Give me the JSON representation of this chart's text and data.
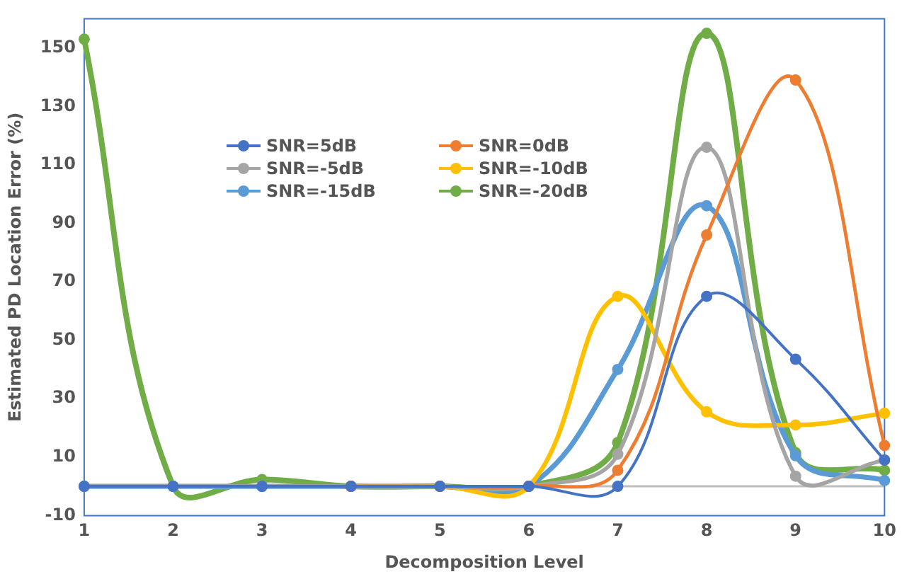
{
  "chart_data": {
    "type": "line",
    "xlabel": "Decomposition Level",
    "ylabel": "Estimated PD Location Error (%)",
    "categories": [
      "1",
      "2",
      "3",
      "4",
      "5",
      "6",
      "7",
      "8",
      "9",
      "10"
    ],
    "ylim": [
      -10,
      160
    ],
    "yticks": [
      -10,
      10,
      30,
      50,
      70,
      90,
      110,
      130,
      150
    ],
    "series": [
      {
        "name": "SNR=5dB",
        "color": "#4472c4",
        "values": [
          0,
          0,
          0,
          0,
          0,
          0,
          0,
          65,
          43.5,
          9
        ]
      },
      {
        "name": "SNR=0dB",
        "color": "#ed7d31",
        "values": [
          null,
          null,
          null,
          0,
          0,
          0,
          5.5,
          86,
          139,
          14
        ]
      },
      {
        "name": "SNR=-5dB",
        "color": "#a5a5a5",
        "values": [
          0,
          0,
          0,
          0,
          0,
          0,
          11,
          116,
          3.5,
          9
        ]
      },
      {
        "name": "SNR=-10dB",
        "color": "#ffc000",
        "values": [
          null,
          null,
          null,
          0,
          0,
          0,
          65,
          25.5,
          21,
          25
        ]
      },
      {
        "name": "SNR=-15dB",
        "color": "#5b9bd5",
        "values": [
          0,
          0,
          0,
          0,
          0,
          0,
          40,
          96,
          10.5,
          2
        ]
      },
      {
        "name": "SNR=-20dB",
        "color": "#70ad47",
        "values": [
          153,
          0,
          2.3,
          0,
          0,
          0,
          15,
          155,
          11.5,
          5.5
        ]
      }
    ],
    "ref_lines": [
      {
        "axis": "y",
        "value": 0,
        "color": "#bfbfbf"
      }
    ],
    "legend": "top left",
    "marker": "circle",
    "line_style": "solid",
    "grid": false
  }
}
